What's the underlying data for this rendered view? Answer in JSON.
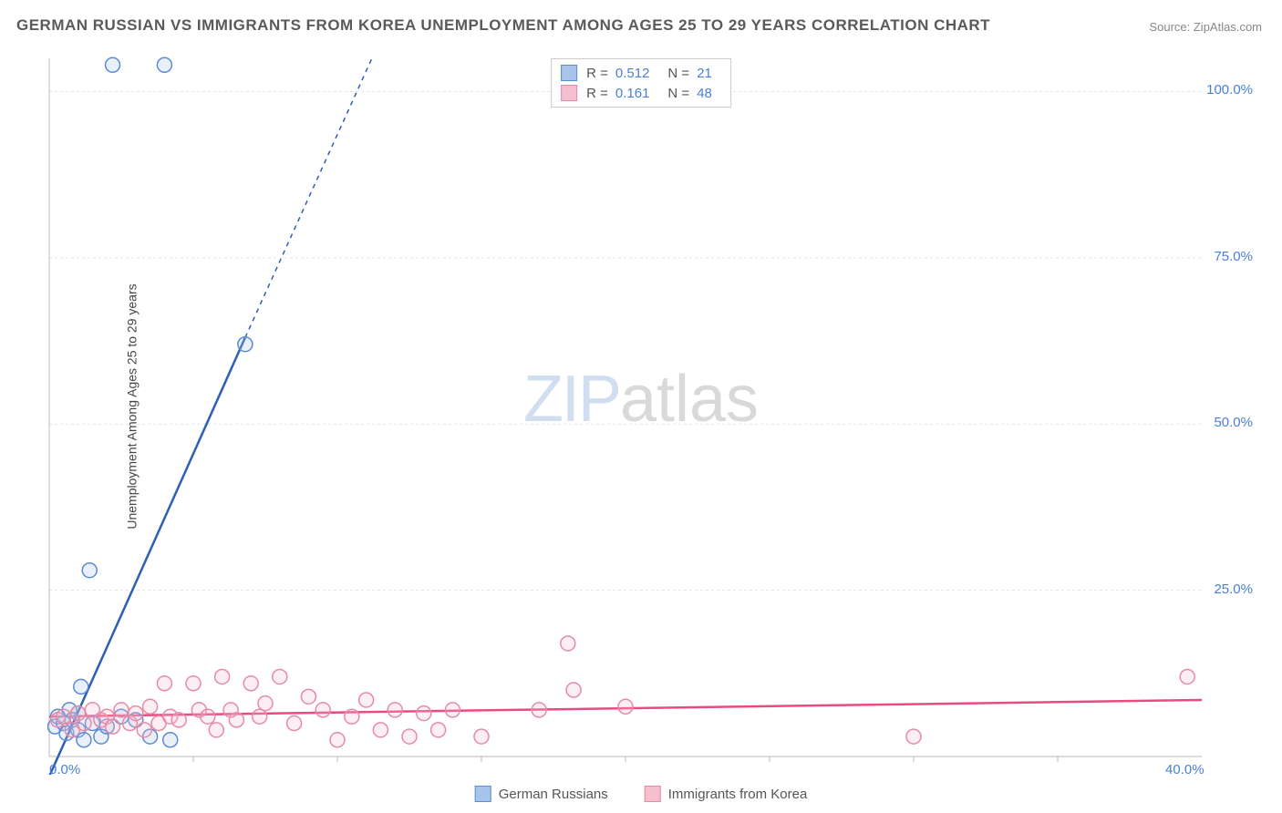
{
  "title": "GERMAN RUSSIAN VS IMMIGRANTS FROM KOREA UNEMPLOYMENT AMONG AGES 25 TO 29 YEARS CORRELATION CHART",
  "source": "Source: ZipAtlas.com",
  "y_axis_label": "Unemployment Among Ages 25 to 29 years",
  "watermark_a": "ZIP",
  "watermark_b": "atlas",
  "chart": {
    "type": "scatter",
    "background_color": "#ffffff",
    "grid_color": "#e4e4e4",
    "axis_color": "#bbbbbb",
    "xlim": [
      0,
      40
    ],
    "ylim": [
      0,
      105
    ],
    "x_ticks": [
      0,
      40
    ],
    "x_tick_labels": [
      "0.0%",
      "40.0%"
    ],
    "x_minor_ticks": [
      5,
      10,
      15,
      20,
      25,
      30,
      35
    ],
    "y_ticks": [
      25,
      50,
      75,
      100
    ],
    "y_tick_labels": [
      "25.0%",
      "50.0%",
      "75.0%",
      "100.0%"
    ],
    "label_color": "#4a7fd8",
    "label_fontsize": 15,
    "marker_radius": 8,
    "marker_stroke_width": 1.5,
    "marker_fill_opacity": 0.25,
    "line_width": 2.5
  },
  "series": [
    {
      "name": "German Russians",
      "color_stroke": "#5b8bd4",
      "color_fill": "#a7c4ea",
      "trend_color": "#2e5fb5",
      "r": "0.512",
      "n": "21",
      "trend_line": {
        "x1": 0,
        "y1": -3,
        "x2": 6.8,
        "y2": 63,
        "dash_extend_to_x": 11.2,
        "dash_extend_to_y": 105
      },
      "points": [
        [
          0.2,
          4.5
        ],
        [
          0.3,
          6
        ],
        [
          0.5,
          5
        ],
        [
          0.6,
          3.5
        ],
        [
          0.7,
          7
        ],
        [
          0.8,
          5.5
        ],
        [
          1.0,
          4
        ],
        [
          1.1,
          10.5
        ],
        [
          1.2,
          2.5
        ],
        [
          1.4,
          28
        ],
        [
          1.5,
          5
        ],
        [
          1.8,
          3
        ],
        [
          2.0,
          4.5
        ],
        [
          2.2,
          104
        ],
        [
          2.5,
          6
        ],
        [
          3.0,
          5.5
        ],
        [
          3.5,
          3
        ],
        [
          4.0,
          104
        ],
        [
          4.2,
          2.5
        ],
        [
          6.8,
          62
        ],
        [
          1.0,
          6.5
        ]
      ]
    },
    {
      "name": "Immigrants from Korea",
      "color_stroke": "#e68aa5",
      "color_fill": "#f4bfcf",
      "trend_color": "#e94b7e",
      "r": "0.161",
      "n": "48",
      "trend_line": {
        "x1": 0,
        "y1": 6,
        "x2": 40,
        "y2": 8.5
      },
      "points": [
        [
          0.3,
          5.5
        ],
        [
          0.5,
          6
        ],
        [
          0.8,
          4
        ],
        [
          1.0,
          6.5
        ],
        [
          1.2,
          5
        ],
        [
          1.5,
          7
        ],
        [
          1.8,
          5.5
        ],
        [
          2.0,
          6
        ],
        [
          2.2,
          4.5
        ],
        [
          2.5,
          7
        ],
        [
          2.8,
          5
        ],
        [
          3.0,
          6.5
        ],
        [
          3.3,
          4
        ],
        [
          3.5,
          7.5
        ],
        [
          3.8,
          5
        ],
        [
          4.0,
          11
        ],
        [
          4.2,
          6
        ],
        [
          4.5,
          5.5
        ],
        [
          5.0,
          11
        ],
        [
          5.2,
          7
        ],
        [
          5.5,
          6
        ],
        [
          5.8,
          4
        ],
        [
          6.0,
          12
        ],
        [
          6.3,
          7
        ],
        [
          6.5,
          5.5
        ],
        [
          7.0,
          11
        ],
        [
          7.3,
          6
        ],
        [
          7.5,
          8
        ],
        [
          8.0,
          12
        ],
        [
          8.5,
          5
        ],
        [
          9.0,
          9
        ],
        [
          9.5,
          7
        ],
        [
          10.0,
          2.5
        ],
        [
          10.5,
          6
        ],
        [
          11.0,
          8.5
        ],
        [
          11.5,
          4
        ],
        [
          12.0,
          7
        ],
        [
          12.5,
          3
        ],
        [
          13.0,
          6.5
        ],
        [
          13.5,
          4
        ],
        [
          14.0,
          7
        ],
        [
          15.0,
          3
        ],
        [
          17.0,
          7
        ],
        [
          18.0,
          17
        ],
        [
          18.2,
          10
        ],
        [
          20.0,
          7.5
        ],
        [
          30.0,
          3
        ],
        [
          39.5,
          12
        ]
      ]
    }
  ],
  "legend_bottom": [
    {
      "label": "German Russians",
      "swatch_fill": "#a7c4ea",
      "swatch_stroke": "#5b8bd4"
    },
    {
      "label": "Immigrants from Korea",
      "swatch_fill": "#f4bfcf",
      "swatch_stroke": "#e68aa5"
    }
  ]
}
